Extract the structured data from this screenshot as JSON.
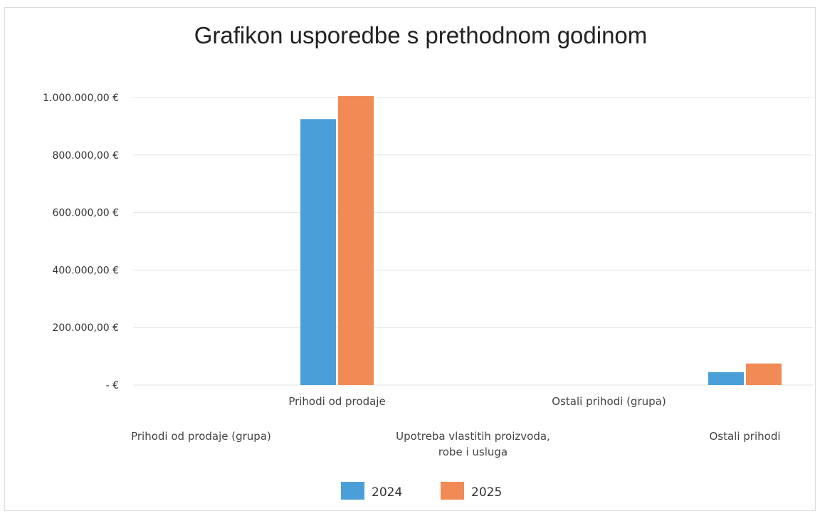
{
  "chart_data": {
    "type": "bar",
    "title": "Grafikon usporedbe s prethodnom godinom",
    "ylim": [
      0,
      1000000
    ],
    "yticks": [
      {
        "value": 1000000,
        "label": "1.000.000,00 €"
      },
      {
        "value": 800000,
        "label": "800.000,00 €"
      },
      {
        "value": 600000,
        "label": "600.000,00 €"
      },
      {
        "value": 400000,
        "label": "400.000,00 €"
      },
      {
        "value": 200000,
        "label": "200.000,00 €"
      },
      {
        "value": 0,
        "label": "-   €"
      }
    ],
    "grid": true,
    "legend_position": "bottom",
    "categories": [
      {
        "label_lines": [
          "Prihodi od prodaje (grupa)"
        ],
        "row": 2
      },
      {
        "label_lines": [
          "Prihodi od prodaje"
        ],
        "row": 1
      },
      {
        "label_lines": [
          "Upotreba vlastitih proizvoda,",
          "robe i usluga"
        ],
        "row": 2
      },
      {
        "label_lines": [
          "Ostali prihodi (grupa)"
        ],
        "row": 1
      },
      {
        "label_lines": [
          "Ostali prihodi"
        ],
        "row": 2
      }
    ],
    "series": [
      {
        "name": "2024",
        "color": "#4a9fd8",
        "values": [
          0,
          925000,
          0,
          0,
          45000
        ]
      },
      {
        "name": "2025",
        "color": "#f28a55",
        "values": [
          0,
          1005000,
          0,
          0,
          75000
        ]
      }
    ]
  }
}
